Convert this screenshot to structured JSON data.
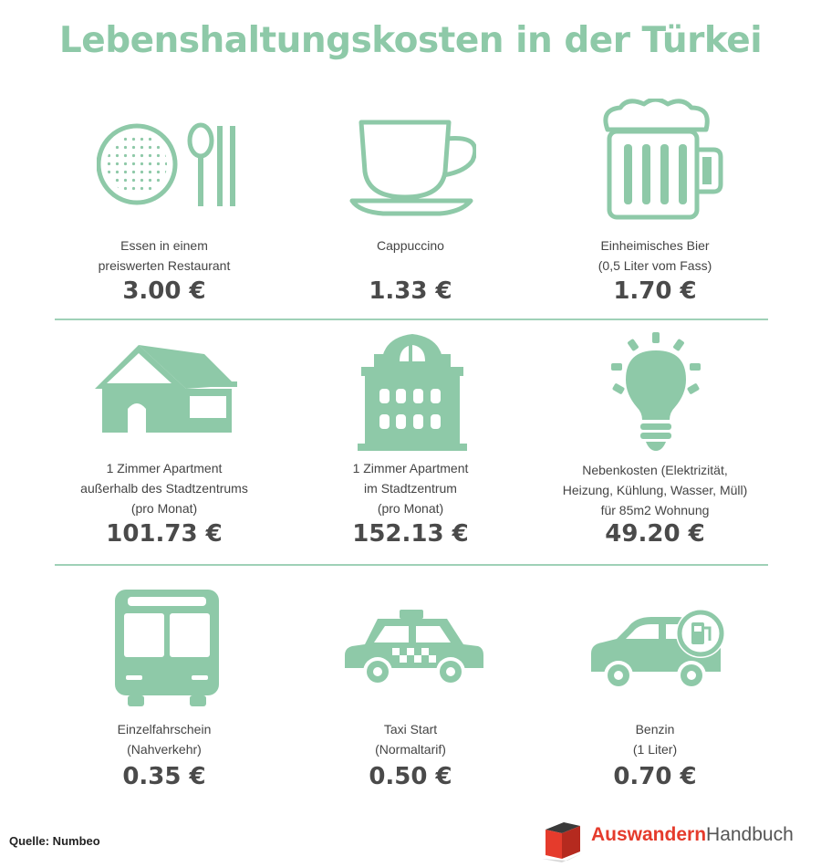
{
  "title": "Lebenshaltungskosten in der Türkei",
  "items": [
    {
      "label_lines": [
        "Essen in einem",
        "preiswerten Restaurant"
      ],
      "price": "3.00 €",
      "icon": "plate-cutlery-icon"
    },
    {
      "label_lines": [
        "Cappuccino"
      ],
      "price": "1.33 €",
      "icon": "coffee-cup-icon"
    },
    {
      "label_lines": [
        "Einheimisches Bier",
        "(0,5 Liter vom Fass)"
      ],
      "price": "1.70 €",
      "icon": "beer-mug-icon"
    },
    {
      "label_lines": [
        "1 Zimmer Apartment",
        "außerhalb des Stadtzentrums",
        "(pro Monat)"
      ],
      "price": "101.73 €",
      "icon": "house-icon"
    },
    {
      "label_lines": [
        "1 Zimmer Apartment",
        "im Stadtzentrum",
        "(pro Monat)"
      ],
      "price": "152.13 €",
      "icon": "apartment-building-icon"
    },
    {
      "label_lines": [
        "Nebenkosten (Elektrizität,",
        "Heizung, Kühlung, Wasser, Müll)",
        "für 85m2 Wohnung"
      ],
      "price": "49.20 €",
      "icon": "light-bulb-icon"
    },
    {
      "label_lines": [
        "Einzelfahrschein",
        "(Nahverkehr)"
      ],
      "price": "0.35 €",
      "icon": "bus-icon"
    },
    {
      "label_lines": [
        "Taxi Start",
        "(Normaltarif)"
      ],
      "price": "0.50 €",
      "icon": "taxi-icon"
    },
    {
      "label_lines": [
        "Benzin",
        "(1 Liter)"
      ],
      "price": "0.70 €",
      "icon": "car-fuel-icon"
    }
  ],
  "source": "Quelle: Numbeo",
  "logo": {
    "part1": "Auswandern",
    "part2": "Handbuch"
  },
  "colors": {
    "accent": "#8ec9a8",
    "icon": "#8ec9a8",
    "logo_red": "#e53b2c"
  }
}
